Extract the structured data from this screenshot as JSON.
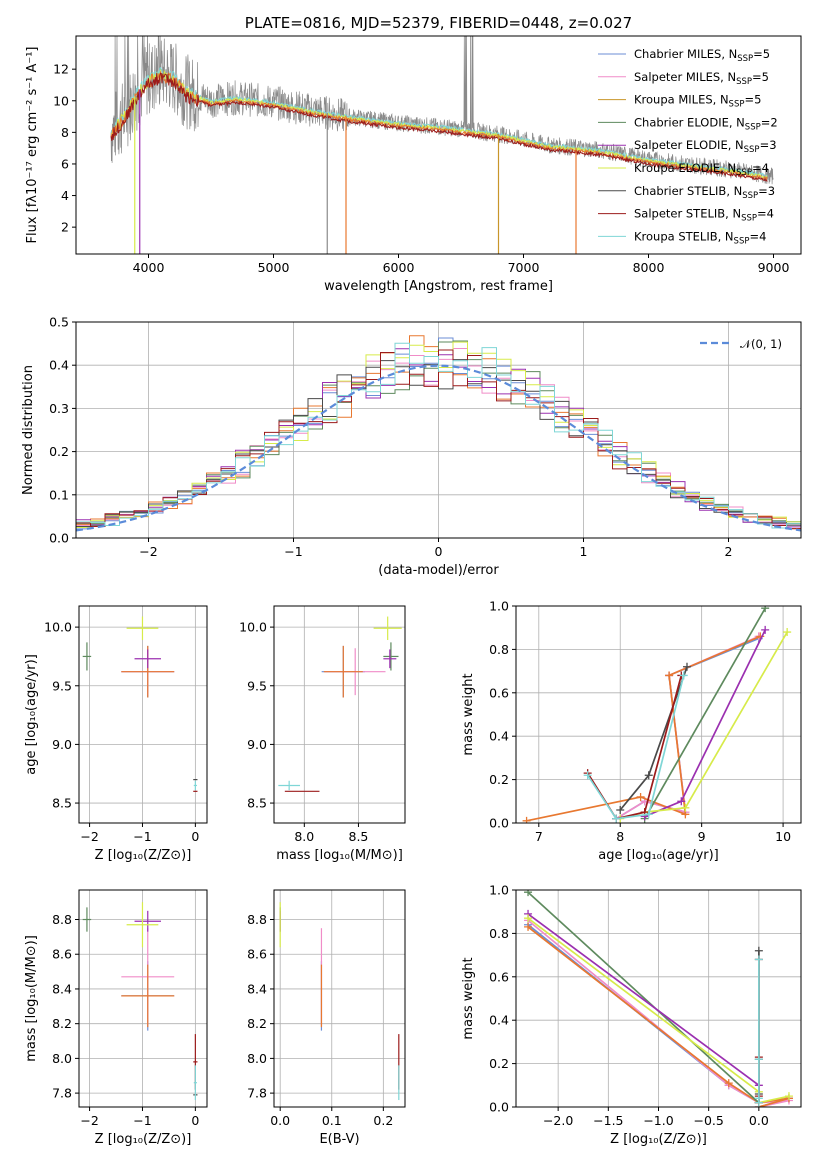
{
  "colors": {
    "Chabrier MILES": "#6b8ed6",
    "Salpeter MILES": "#f08cc8",
    "Kroupa MILES": "#c8962a",
    "Chabrier ELODIE": "#5e8a5e",
    "Salpeter ELODIE": "#9b30b0",
    "Kroupa ELODIE": "#d7eb4a",
    "Chabrier STELIB": "#4a4a4a",
    "Salpeter STELIB": "#9b1b1b",
    "Kroupa STELIB": "#7fd6d6",
    "normal": "#5b8bd9",
    "orange": "#e87830"
  },
  "chart_data": [
    {
      "id": "spectrum",
      "type": "line",
      "title": "PLATE=0816, MJD=52379, FIBERID=0448, z=0.027",
      "xlabel": "wavelength [Angstrom, rest frame]",
      "ylabel": "Flux [fλ10⁻¹⁷ erg cm⁻² s⁻¹ A⁻¹]",
      "xlim": [
        3420,
        9220
      ],
      "ylim": [
        0.3,
        14.1
      ],
      "xticks": [
        "4000",
        "5000",
        "6000",
        "7000",
        "8000",
        "9000"
      ],
      "yticks": [
        "2",
        "4",
        "6",
        "8",
        "10",
        "12"
      ],
      "legend_position": "upper-right",
      "data_trend": {
        "x": [
          3700,
          3800,
          3900,
          4000,
          4100,
          4200,
          4300,
          4500,
          4700,
          5000,
          5300,
          5600,
          6000,
          6400,
          6800,
          7200,
          7600,
          8000,
          8400,
          8700,
          9000
        ],
        "y": [
          8.0,
          9.0,
          10.4,
          11.4,
          11.8,
          11.5,
          10.6,
          10.0,
          10.2,
          9.9,
          9.4,
          9.0,
          8.6,
          8.3,
          7.9,
          7.2,
          6.9,
          6.3,
          5.9,
          5.6,
          5.2
        ]
      },
      "legend": [
        {
          "label": "Chabrier MILES, N",
          "sub": "SSP",
          "value": "=5"
        },
        {
          "label": "Salpeter MILES, N",
          "sub": "SSP",
          "value": "=5"
        },
        {
          "label": "Kroupa MILES, N",
          "sub": "SSP",
          "value": "=5"
        },
        {
          "label": "Chabrier ELODIE, N",
          "sub": "SSP",
          "value": "=2"
        },
        {
          "label": "Salpeter ELODIE, N",
          "sub": "SSP",
          "value": "=3"
        },
        {
          "label": "Kroupa ELODIE, N",
          "sub": "SSP",
          "value": "=4"
        },
        {
          "label": "Chabrier STELIB, N",
          "sub": "SSP",
          "value": "=3"
        },
        {
          "label": "Salpeter STELIB, N",
          "sub": "SSP",
          "value": "=4"
        },
        {
          "label": "Kroupa STELIB, N",
          "sub": "SSP",
          "value": "=4"
        }
      ]
    },
    {
      "id": "residuals",
      "type": "line",
      "xlabel": "(data-model)/error",
      "ylabel": "Normed distribution",
      "xlim": [
        -2.5,
        2.5
      ],
      "ylim": [
        0,
        0.5
      ],
      "xticks": [
        "−2",
        "−1",
        "0",
        "1",
        "2"
      ],
      "yticks": [
        "0.0",
        "0.1",
        "0.2",
        "0.3",
        "0.4",
        "0.5"
      ],
      "legend_position": "upper-right",
      "legend": [
        {
          "label": "𝒩(0, 1)"
        }
      ],
      "bin_width": 0.1
    },
    {
      "id": "age_vs_Z",
      "type": "scatter",
      "xlabel": "Z [log₁₀(Z/Z⊙)]",
      "ylabel": "age  [log₁₀(age/yr)]",
      "xlim": [
        -2.2,
        0.22
      ],
      "ylim": [
        8.33,
        10.18
      ],
      "xticks": [
        "−2",
        "−1",
        "0"
      ],
      "yticks": [
        "8.5",
        "9.0",
        "9.5",
        "10.0"
      ]
    },
    {
      "id": "age_vs_mass",
      "type": "scatter",
      "xlabel": "mass [log₁₀(M/M⊙)]",
      "ylabel": "",
      "xlim": [
        7.72,
        8.93
      ],
      "ylim": [
        8.33,
        10.18
      ],
      "xticks": [
        "8.0",
        "8.5"
      ],
      "yticks": [
        "8.5",
        "9.0",
        "9.5",
        "10.0"
      ]
    },
    {
      "id": "mass_weight_vs_age",
      "type": "line",
      "xlabel": "age  [log₁₀(age/yr)]",
      "ylabel": "mass weight",
      "xlim": [
        6.72,
        10.22
      ],
      "ylim": [
        0,
        1
      ],
      "xticks": [
        "7",
        "8",
        "9",
        "10"
      ],
      "yticks": [
        "0.0",
        "0.2",
        "0.4",
        "0.6",
        "0.8",
        "1.0"
      ]
    },
    {
      "id": "mass_vs_Z",
      "type": "scatter",
      "xlabel": "Z [log₁₀(Z/Z⊙)]",
      "ylabel": "mass [log₁₀(M/M⊙)]",
      "xlim": [
        -2.2,
        0.22
      ],
      "ylim": [
        7.72,
        8.97
      ],
      "xticks": [
        "−2",
        "−1",
        "0"
      ],
      "yticks": [
        "7.8",
        "8.0",
        "8.2",
        "8.4",
        "8.6",
        "8.8"
      ]
    },
    {
      "id": "mass_vs_EBV",
      "type": "scatter",
      "xlabel": "E(B-V)",
      "ylabel": "",
      "xlim": [
        -0.012,
        0.242
      ],
      "ylim": [
        7.72,
        8.97
      ],
      "xticks": [
        "0.0",
        "0.1",
        "0.2"
      ],
      "yticks": [
        "7.8",
        "8.0",
        "8.2",
        "8.4",
        "8.6",
        "8.8"
      ]
    },
    {
      "id": "mass_weight_vs_Z",
      "type": "line",
      "xlabel": "Z [log₁₀(Z/Z⊙)]",
      "ylabel": "mass weight",
      "xlim": [
        -2.42,
        0.42
      ],
      "ylim": [
        0,
        1
      ],
      "xticks": [
        "−2.0",
        "−1.5",
        "−1.0",
        "−0.5",
        "0.0"
      ],
      "yticks": [
        "0.0",
        "0.2",
        "0.4",
        "0.6",
        "0.8",
        "1.0"
      ]
    }
  ],
  "models": [
    {
      "name": "Chabrier MILES",
      "age": [
        9.62,
        0.22
      ],
      "mass": [
        8.36,
        0.2
      ],
      "Z": [
        -0.9,
        0.5
      ],
      "ebv": 0.08,
      "ages": [
        [
          7.95,
          0.02
        ],
        [
          8.3,
          0.1
        ],
        [
          8.8,
          0.05
        ],
        [
          8.6,
          0.68
        ],
        [
          9.7,
          0.85
        ]
      ],
      "Zs": [
        [
          -2.3,
          0.84
        ],
        [
          -0.3,
          0.1
        ],
        [
          0.0,
          0.02
        ],
        [
          0.3,
          0.04
        ],
        [
          0.0,
          0.0
        ]
      ]
    },
    {
      "name": "Salpeter MILES",
      "age": [
        9.62,
        0.2
      ],
      "mass": [
        8.47,
        0.28
      ],
      "Z": [
        -0.9,
        0.5
      ],
      "ebv": 0.08,
      "ages": [
        [
          7.95,
          0.02
        ],
        [
          8.3,
          0.1
        ],
        [
          8.8,
          0.05
        ],
        [
          8.6,
          0.68
        ],
        [
          9.7,
          0.86
        ]
      ],
      "Zs": [
        [
          -2.3,
          0.86
        ],
        [
          -0.3,
          0.1
        ],
        [
          0.0,
          0.02
        ],
        [
          0.3,
          0.03
        ],
        [
          0.0,
          0.0
        ]
      ]
    },
    {
      "name": "Kroupa MILES",
      "age": [
        9.62,
        0.22
      ],
      "mass": [
        8.36,
        0.18
      ],
      "Z": [
        -0.9,
        0.5
      ],
      "ebv": 0.08,
      "ages": [
        [
          6.85,
          0.01
        ],
        [
          8.25,
          0.12
        ],
        [
          8.8,
          0.04
        ],
        [
          8.6,
          0.68
        ],
        [
          9.72,
          0.86
        ]
      ],
      "Zs": [
        [
          -2.3,
          0.83
        ],
        [
          -0.3,
          0.11
        ],
        [
          0.0,
          0.02
        ],
        [
          0.3,
          0.04
        ],
        [
          0.0,
          0.0
        ]
      ]
    },
    {
      "name": "Chabrier ELODIE",
      "age": [
        9.75,
        0.12
      ],
      "mass": [
        8.8,
        0.07
      ],
      "Z": [
        -2.05,
        0.08
      ],
      "ebv": 0.0,
      "ages": [
        [
          8.3,
          0.02
        ],
        [
          9.78,
          0.99
        ]
      ],
      "Zs": [
        [
          -2.3,
          0.99
        ],
        [
          0.0,
          0.02
        ]
      ]
    },
    {
      "name": "Salpeter ELODIE",
      "age": [
        9.73,
        0.08
      ],
      "mass": [
        8.79,
        0.06
      ],
      "Z": [
        -0.9,
        0.25
      ],
      "ebv": 0.0,
      "ages": [
        [
          8.3,
          0.03
        ],
        [
          8.75,
          0.1
        ],
        [
          9.78,
          0.89
        ]
      ],
      "Zs": [
        [
          -2.3,
          0.89
        ],
        [
          0.0,
          0.1
        ],
        [
          0.0,
          0.02
        ]
      ]
    },
    {
      "name": "Kroupa ELODIE",
      "age": [
        9.99,
        0.1
      ],
      "mass": [
        8.77,
        0.13
      ],
      "Z": [
        -1.0,
        0.3
      ],
      "ebv": 0.0,
      "ages": [
        [
          8.0,
          0.02
        ],
        [
          8.3,
          0.05
        ],
        [
          8.8,
          0.07
        ],
        [
          10.05,
          0.88
        ]
      ],
      "Zs": [
        [
          -2.3,
          0.87
        ],
        [
          0.0,
          0.07
        ],
        [
          0.0,
          0.02
        ],
        [
          0.3,
          0.05
        ]
      ]
    },
    {
      "name": "Chabrier STELIB",
      "age": [
        8.7,
        0.0
      ],
      "mass": [
        7.79,
        0.0
      ],
      "Z": [
        0.0,
        0.04
      ],
      "ebv": 0.23,
      "ages": [
        [
          8.0,
          0.06
        ],
        [
          8.35,
          0.22
        ],
        [
          8.82,
          0.72
        ]
      ],
      "Zs": [
        [
          0.0,
          0.72
        ],
        [
          0.0,
          0.22
        ],
        [
          0.0,
          0.06
        ]
      ]
    },
    {
      "name": "Salpeter STELIB",
      "age": [
        8.6,
        0.0
      ],
      "mass": [
        7.98,
        0.16
      ],
      "Z": [
        0.0,
        0.04
      ],
      "ebv": 0.23,
      "ages": [
        [
          7.6,
          0.23
        ],
        [
          7.95,
          0.02
        ],
        [
          8.3,
          0.05
        ],
        [
          8.75,
          0.68
        ]
      ],
      "Zs": [
        [
          0.0,
          0.68
        ],
        [
          0.0,
          0.23
        ],
        [
          0.0,
          0.05
        ],
        [
          0.0,
          0.02
        ]
      ]
    },
    {
      "name": "Kroupa STELIB",
      "age": [
        8.65,
        0.04
      ],
      "mass": [
        7.86,
        0.1
      ],
      "Z": [
        0.0,
        0.03
      ],
      "ebv": 0.23,
      "ages": [
        [
          7.6,
          0.22
        ],
        [
          7.95,
          0.02
        ],
        [
          8.35,
          0.04
        ],
        [
          8.78,
          0.68
        ]
      ],
      "Zs": [
        [
          0.0,
          0.68
        ],
        [
          0.0,
          0.22
        ],
        [
          0.0,
          0.04
        ],
        [
          0.0,
          0.02
        ]
      ]
    }
  ]
}
